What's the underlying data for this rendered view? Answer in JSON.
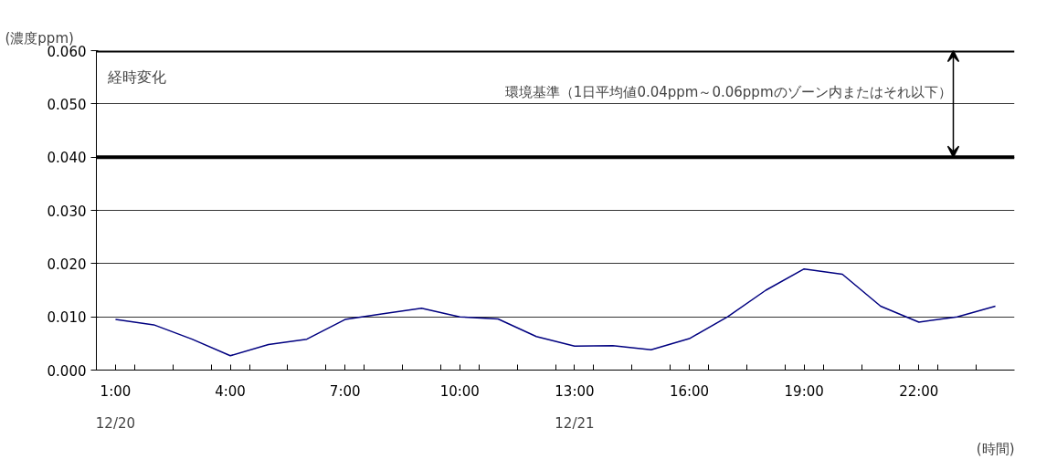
{
  "chart_data": {
    "type": "line",
    "title": "経時変化",
    "ylabel": "(濃度ppm)",
    "xlabel": "(時間)",
    "x": [
      1,
      2,
      3,
      4,
      5,
      6,
      7,
      8,
      9,
      10,
      11,
      12,
      13,
      14,
      15,
      16,
      17,
      18,
      19,
      20,
      21,
      22,
      23,
      24
    ],
    "series": [
      {
        "color": "#000080",
        "values": [
          0.0095,
          0.0085,
          0.0058,
          0.0027,
          0.0048,
          0.0058,
          0.0095,
          0.0106,
          0.0116,
          0.01,
          0.0096,
          0.0063,
          0.0045,
          0.0046,
          0.0038,
          0.0059,
          0.01,
          0.015,
          0.019,
          0.018,
          0.012,
          0.009,
          0.01,
          0.012
        ]
      }
    ],
    "xlim": [
      0.5,
      24.5
    ],
    "xticks": [
      {
        "value": 1,
        "label": "1:00"
      },
      {
        "value": 4,
        "label": "4:00"
      },
      {
        "value": 7,
        "label": "7:00"
      },
      {
        "value": 10,
        "label": "10:00"
      },
      {
        "value": 13,
        "label": "13:00"
      },
      {
        "value": 16,
        "label": "16:00"
      },
      {
        "value": 19,
        "label": "19:00"
      },
      {
        "value": 22,
        "label": "22:00"
      },
      {
        "value": 1.5,
        "label": null
      },
      {
        "value": 2.5,
        "label": null
      },
      {
        "value": 3.5,
        "label": null
      },
      {
        "value": 4.5,
        "label": null
      },
      {
        "value": 5.5,
        "label": null
      },
      {
        "value": 6.5,
        "label": null
      },
      {
        "value": 7.5,
        "label": null
      },
      {
        "value": 8.5,
        "label": null
      },
      {
        "value": 9.5,
        "label": null
      },
      {
        "value": 10.5,
        "label": null
      },
      {
        "value": 11.5,
        "label": null
      },
      {
        "value": 12.5,
        "label": null
      },
      {
        "value": 13.5,
        "label": null
      },
      {
        "value": 14.5,
        "label": null
      },
      {
        "value": 15.5,
        "label": null
      },
      {
        "value": 16.5,
        "label": null
      },
      {
        "value": 17.5,
        "label": null
      },
      {
        "value": 18.5,
        "label": null
      },
      {
        "value": 19.5,
        "label": null
      },
      {
        "value": 20.5,
        "label": null
      },
      {
        "value": 21.5,
        "label": null
      },
      {
        "value": 22.5,
        "label": null
      },
      {
        "value": 23.5,
        "label": null
      }
    ],
    "ylim": [
      0,
      0.06
    ],
    "yticks": [
      {
        "value": 0,
        "label": "0.000"
      },
      {
        "value": 0.01,
        "label": "0.010"
      },
      {
        "value": 0.02,
        "label": "0.020"
      },
      {
        "value": 0.03,
        "label": "0.030"
      },
      {
        "value": 0.04,
        "label": "0.040"
      },
      {
        "value": 0.05,
        "label": "0.050"
      },
      {
        "value": 0.06,
        "label": "0.060"
      }
    ],
    "grid": "y",
    "marker": "none",
    "line_style": "solid",
    "ref_lines": [
      {
        "axis": "y",
        "value": 0.04,
        "color": "#000000"
      },
      {
        "axis": "y",
        "value": 0.06,
        "color": "#000000"
      }
    ],
    "annotations": [
      "環境基準（1日平均値0.04ppm～0.06ppmのゾーン内またはそれ以下）",
      "12/20",
      "12/21"
    ]
  }
}
